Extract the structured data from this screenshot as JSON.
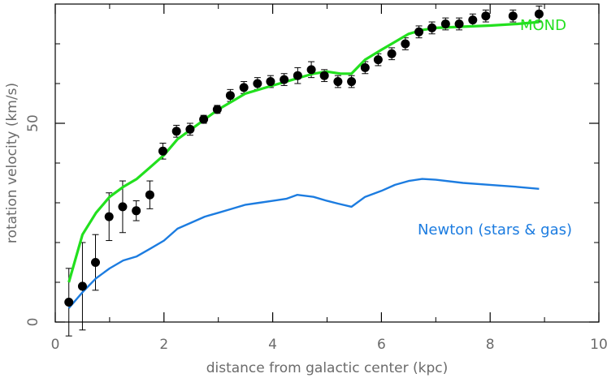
{
  "chart_data": {
    "type": "scatter",
    "title": "",
    "xlabel": "distance from galactic center (kpc)",
    "ylabel": "rotation velocity (km/s)",
    "xlim": [
      0,
      10
    ],
    "ylim": [
      0,
      80
    ],
    "x_ticks": [
      0,
      2,
      4,
      6,
      8,
      10
    ],
    "y_ticks_labeled": [
      0,
      50
    ],
    "y_ticks_minor": [
      10,
      20,
      30,
      40,
      60,
      70
    ],
    "grid": false,
    "series": [
      {
        "kind": "points_with_errorbars",
        "color": "#000000",
        "x": [
          0.25,
          0.5,
          0.74,
          0.99,
          1.24,
          1.49,
          1.74,
          1.98,
          2.23,
          2.48,
          2.73,
          2.98,
          3.22,
          3.47,
          3.72,
          3.96,
          4.21,
          4.46,
          4.71,
          4.95,
          5.2,
          5.45,
          5.7,
          5.94,
          6.19,
          6.44,
          6.69,
          6.93,
          7.18,
          7.43,
          7.68,
          7.92,
          8.42,
          8.9
        ],
        "y": [
          5,
          9,
          15,
          26.5,
          29,
          28,
          32,
          43,
          48,
          48.5,
          51,
          53.5,
          57,
          59,
          60,
          60.5,
          61,
          62,
          63.5,
          62,
          60.5,
          60.5,
          64,
          66,
          67.5,
          70,
          73,
          74,
          75,
          75,
          76,
          77,
          77,
          77.5
        ],
        "yerr": [
          8.5,
          11,
          7,
          6,
          6.5,
          2.5,
          3.5,
          2,
          1.5,
          1.5,
          1,
          1,
          1.5,
          1.5,
          1.5,
          1.5,
          1.5,
          2,
          2,
          1.5,
          1.5,
          1.5,
          1.5,
          1.5,
          1.5,
          1.5,
          1.5,
          1.5,
          1.5,
          1.5,
          1.5,
          1.5,
          1.5,
          2
        ]
      },
      {
        "name": "MOND",
        "kind": "line",
        "color": "#22e01e",
        "x": [
          0.25,
          0.5,
          0.75,
          1.0,
          1.25,
          1.5,
          1.75,
          2.0,
          2.25,
          2.5,
          2.75,
          3.0,
          3.25,
          3.5,
          3.75,
          4.0,
          4.25,
          4.5,
          4.75,
          5.0,
          5.25,
          5.45,
          5.7,
          6.0,
          6.25,
          6.5,
          6.75,
          7.0,
          7.5,
          8.0,
          8.5,
          8.9
        ],
        "y": [
          10,
          22,
          27.5,
          31.5,
          34,
          36,
          39,
          42,
          46,
          48.5,
          51,
          53.5,
          55.5,
          57.5,
          58.5,
          59.5,
          60.5,
          61.5,
          62.5,
          63,
          62.5,
          62.5,
          66,
          68.5,
          70.5,
          72.5,
          73.5,
          74,
          74.3,
          74.6,
          75,
          75.5
        ]
      },
      {
        "name": "Newton (stars & gas)",
        "kind": "line",
        "color": "#1c7ce0",
        "x": [
          0.25,
          0.5,
          0.75,
          1.0,
          1.25,
          1.5,
          1.75,
          2.0,
          2.25,
          2.5,
          2.75,
          3.0,
          3.25,
          3.5,
          3.75,
          4.0,
          4.25,
          4.45,
          4.75,
          5.0,
          5.2,
          5.45,
          5.7,
          6.0,
          6.25,
          6.5,
          6.75,
          7.0,
          7.5,
          8.0,
          8.5,
          8.9
        ],
        "y": [
          3.5,
          7.5,
          11,
          13.5,
          15.5,
          16.5,
          18.5,
          20.5,
          23.5,
          25,
          26.5,
          27.5,
          28.5,
          29.5,
          30,
          30.5,
          31,
          32,
          31.5,
          30.5,
          29.8,
          29,
          31.5,
          33,
          34.5,
          35.5,
          36,
          35.8,
          35,
          34.5,
          34,
          33.5
        ]
      }
    ]
  }
}
